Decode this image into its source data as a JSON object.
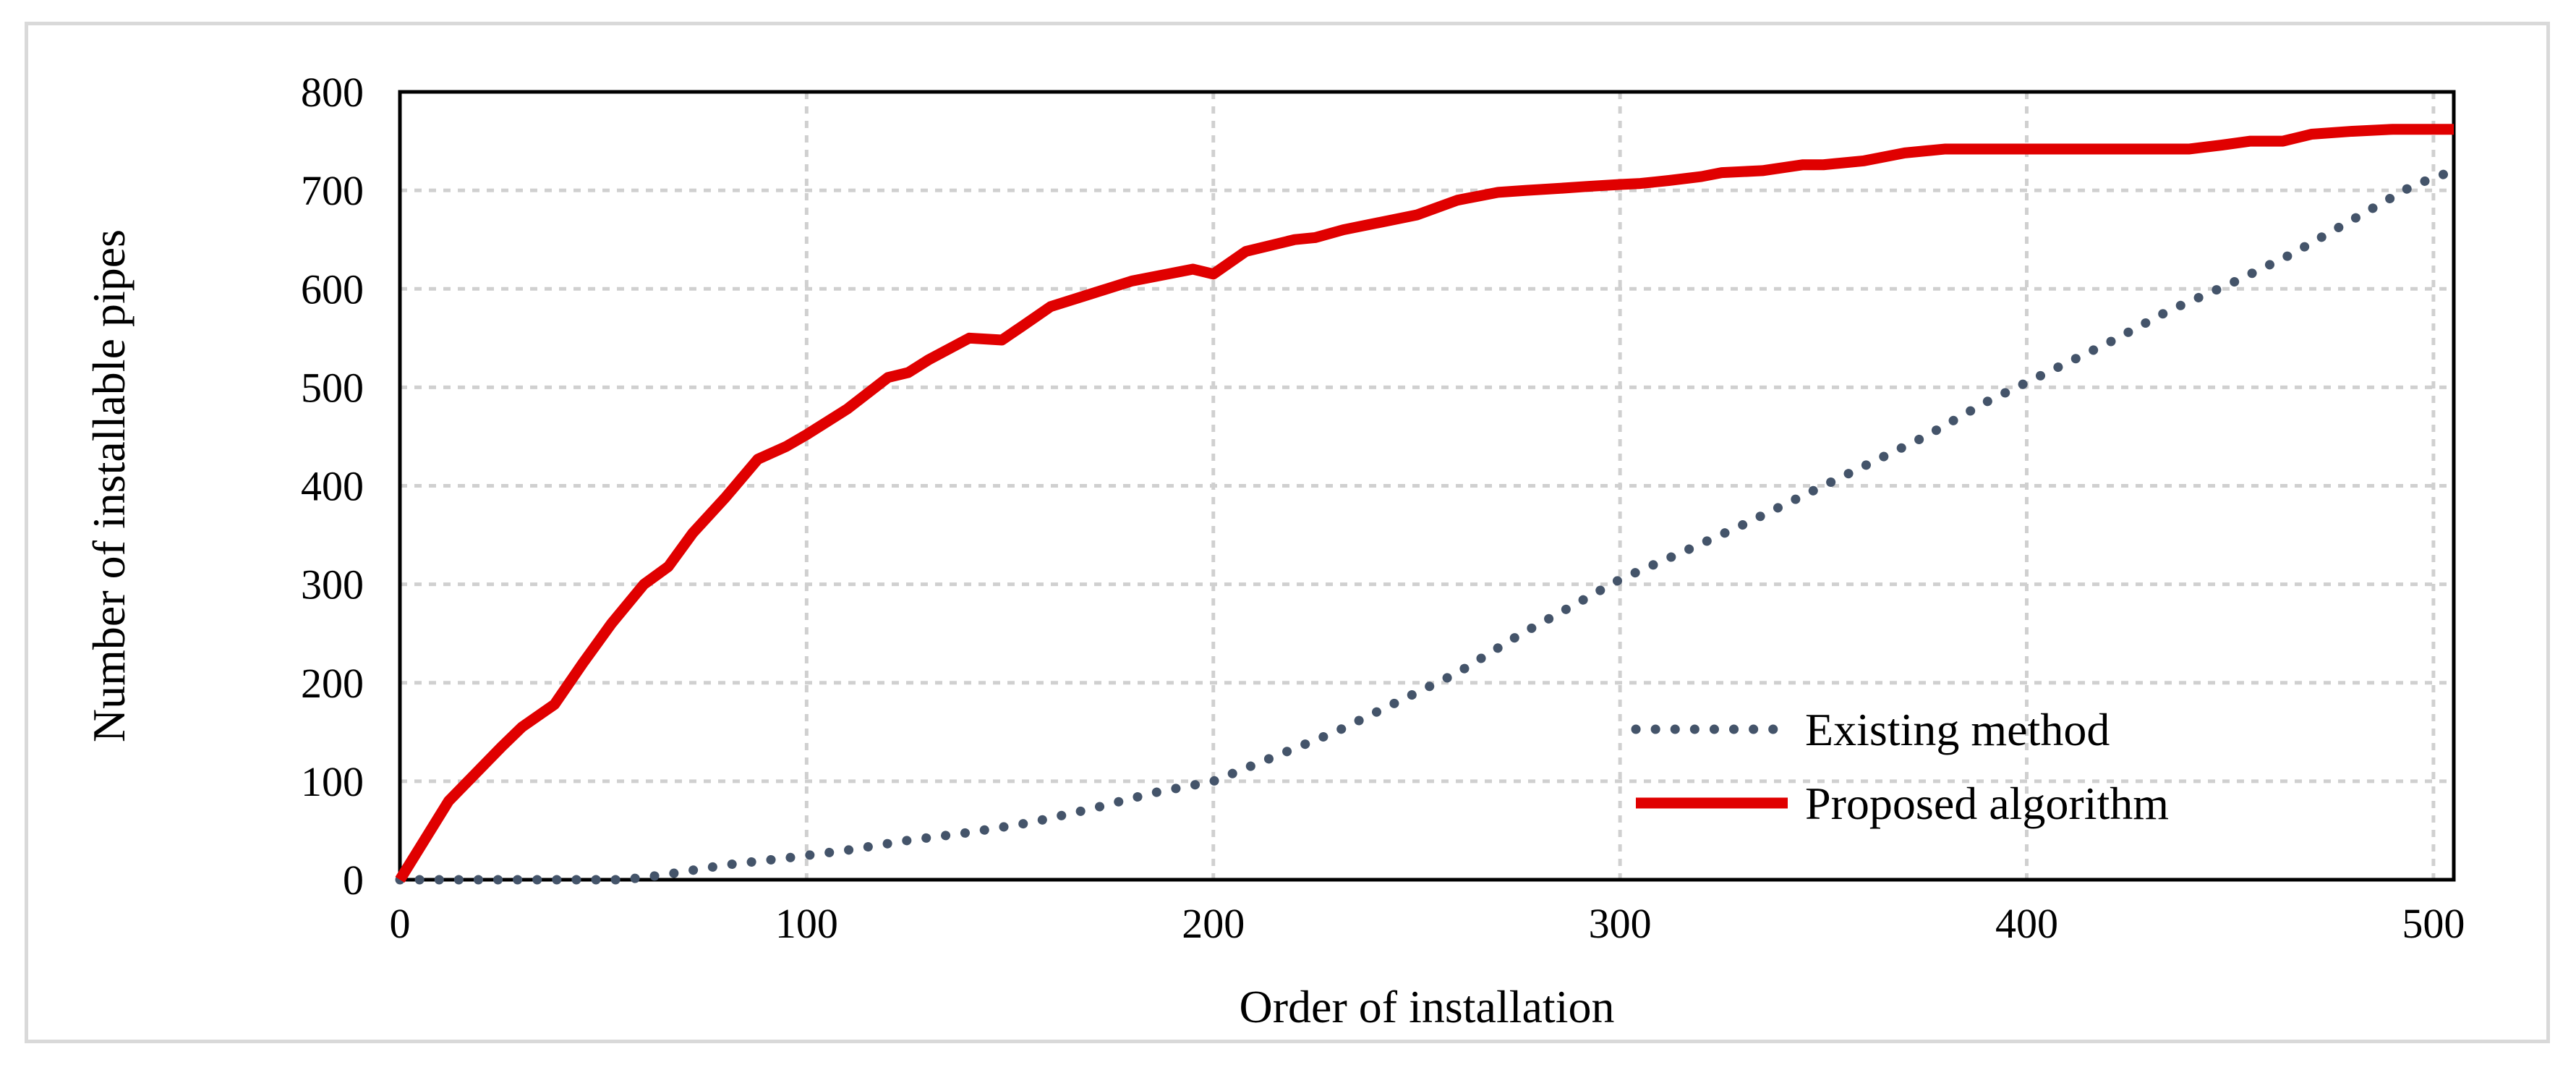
{
  "chart_data": {
    "type": "line",
    "xlabel": "Order of installation",
    "ylabel": "Number of installable pipes",
    "xlim": [
      0,
      505
    ],
    "ylim": [
      0,
      800
    ],
    "xticks": [
      0,
      100,
      200,
      300,
      400,
      500
    ],
    "yticks": [
      0,
      100,
      200,
      300,
      400,
      500,
      600,
      700,
      800
    ],
    "grid": true,
    "legend_position": "bottom-right",
    "series": [
      {
        "name": "Existing method",
        "color": "#44546a",
        "style": "dotted",
        "x": [
          0,
          20,
          40,
          55,
          65,
          80,
          95,
          110,
          125,
          140,
          155,
          170,
          185,
          200,
          215,
          230,
          245,
          260,
          275,
          290,
          300,
          315,
          330,
          345,
          360,
          375,
          390,
          405,
          420,
          435,
          450,
          465,
          480,
          495,
          505
        ],
        "values": [
          0,
          0,
          0,
          0,
          5,
          15,
          22,
          30,
          40,
          48,
          58,
          72,
          88,
          100,
          125,
          150,
          180,
          210,
          248,
          282,
          305,
          332,
          360,
          390,
          420,
          450,
          485,
          515,
          545,
          578,
          605,
          635,
          670,
          705,
          720
        ]
      },
      {
        "name": "Proposed algorithm",
        "color": "#e00000",
        "style": "solid",
        "x": [
          0,
          12,
          25,
          30,
          38,
          45,
          52,
          60,
          66,
          72,
          80,
          88,
          95,
          100,
          110,
          120,
          125,
          130,
          140,
          148,
          153,
          160,
          170,
          180,
          195,
          200,
          208,
          220,
          225,
          232,
          238,
          250,
          260,
          270,
          277,
          285,
          292,
          300,
          305,
          312,
          320,
          325,
          335,
          345,
          350,
          360,
          370,
          380,
          392,
          400,
          420,
          440,
          448,
          455,
          463,
          470,
          480,
          490,
          505
        ],
        "values": [
          0,
          80,
          135,
          155,
          178,
          220,
          260,
          300,
          318,
          352,
          388,
          427,
          440,
          452,
          478,
          510,
          515,
          528,
          550,
          548,
          562,
          582,
          595,
          608,
          620,
          615,
          638,
          650,
          652,
          660,
          665,
          675,
          690,
          698,
          700,
          702,
          704,
          706,
          707,
          710,
          714,
          718,
          720,
          726,
          726,
          730,
          738,
          742,
          742,
          742,
          742,
          742,
          746,
          750,
          750,
          757,
          760,
          762,
          762
        ]
      }
    ]
  }
}
